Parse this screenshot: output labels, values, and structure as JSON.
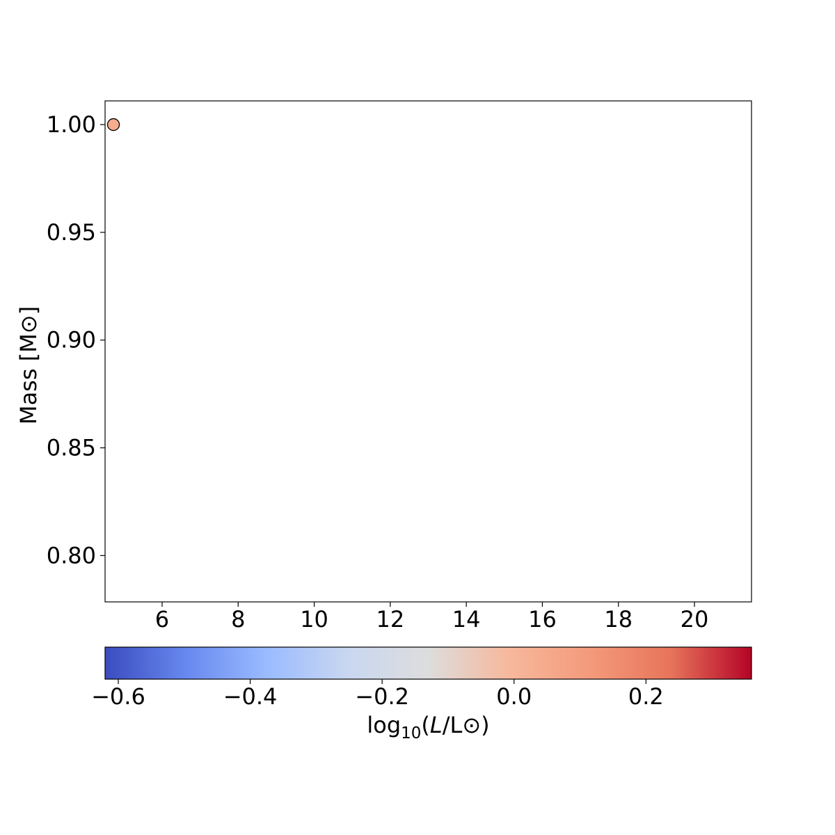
{
  "chart_data": {
    "type": "scatter",
    "title": "",
    "xlabel": "",
    "ylabel": "Mass [M⊙]",
    "xlim": [
      4.5,
      21.5
    ],
    "ylim": [
      0.7785,
      1.011
    ],
    "xticks": [
      6,
      8,
      10,
      12,
      14,
      16,
      18,
      20
    ],
    "yticks": [
      0.8,
      0.85,
      0.9,
      0.95,
      1.0
    ],
    "grid": false,
    "points": [
      {
        "x": 4.72,
        "y": 1.0,
        "c": 0.04
      }
    ],
    "marker_edge_color": "#000000",
    "colorbar": {
      "label_prefix": "log",
      "label_subscript": "10",
      "label_open": "(",
      "label_italic": "L",
      "label_rest": "/L⊙)",
      "range": [
        -0.62,
        0.36
      ],
      "ticks": [
        -0.6,
        -0.4,
        -0.2,
        0.0,
        0.2
      ],
      "tick_labels": [
        "−0.6",
        "−0.4",
        "−0.2",
        "0.0",
        "0.2"
      ],
      "colormap": "coolwarm",
      "colors": [
        "#3b4cc0",
        "#6788ee",
        "#9abbff",
        "#c9d7f0",
        "#dddddd",
        "#f7b89c",
        "#f49a7b",
        "#e7745b",
        "#b40426"
      ],
      "placement": "bottom"
    }
  }
}
